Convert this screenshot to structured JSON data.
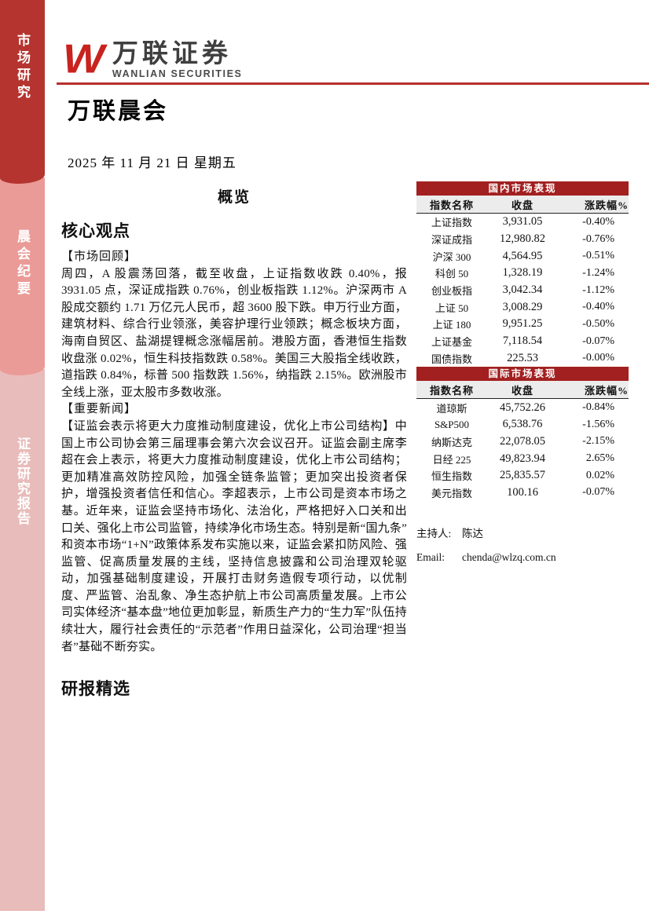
{
  "colors": {
    "accent_red": "#b5312b",
    "table_header_red": "#a32020",
    "sidebar_top_red": "#b5342f",
    "sidebar_middle_pink": "#ea9b97",
    "sidebar_bottom_pink": "#e8bcba",
    "logo_red": "#c8231f"
  },
  "sidebar": {
    "sections": [
      {
        "label": "市场研究"
      },
      {
        "label": "晨会纪要"
      },
      {
        "label": "证券研究报告"
      }
    ]
  },
  "header": {
    "logo_symbol": "W",
    "logo_cn": "万联证券",
    "logo_en": "WANLIAN SECURITIES",
    "report_title": "万联晨会",
    "date": "2025 年 11 月 21 日  星期五"
  },
  "overview": {
    "heading": "概览",
    "core_views_heading": "核心观点",
    "market_review_label": "【市场回顾】",
    "market_review_text": "周四，A 股震荡回落，截至收盘，上证指数收跌 0.40%，报 3931.05 点，深证成指跌 0.76%，创业板指跌 1.12%。沪深两市 A 股成交额约 1.71 万亿元人民币，超 3600 股下跌。申万行业方面，建筑材料、综合行业领涨，美容护理行业领跌；概念板块方面，海南自贸区、盐湖提锂概念涨幅居前。港股方面，香港恒生指数收盘涨 0.02%，恒生科技指数跌 0.58%。美国三大股指全线收跌，道指跌 0.84%，标普 500 指数跌 1.56%，纳指跌 2.15%。欧洲股市全线上涨，亚太股市多数收涨。",
    "important_news_label": "【重要新闻】",
    "important_news_text": "【证监会表示将更大力度推动制度建设，优化上市公司结构】中国上市公司协会第三届理事会第六次会议召开。证监会副主席李超在会上表示，将更大力度推动制度建设，优化上市公司结构；更加精准高效防控风险，加强全链条监管；更加突出投资者保护，增强投资者信任和信心。李超表示，上市公司是资本市场之基。近年来，证监会坚持市场化、法治化，严格把好入口关和出口关、强化上市公司监管，持续净化市场生态。特别是新“国九条”和资本市场“1+N”政策体系发布实施以来，证监会紧扣防风险、强监管、促高质量发展的主线，坚持信息披露和公司治理双轮驱动，加强基础制度建设，开展打击财务造假专项行动，以优制度、严监管、治乱象、净生态护航上市公司高质量发展。上市公司实体经济“基本盘”地位更加彰显，新质生产力的“生力军”队伍持续壮大，履行社会责任的“示范者”作用日益深化，公司治理“担当者”基础不断夯实。",
    "report_picks_heading": "研报精选"
  },
  "market_tables": [
    {
      "title": "国内市场表现",
      "columns": [
        "指数名称",
        "收盘",
        "涨跌幅%"
      ],
      "rows": [
        [
          "上证指数",
          "3,931.05",
          "-0.40%"
        ],
        [
          "深证成指",
          "12,980.82",
          "-0.76%"
        ],
        [
          "沪深 300",
          "4,564.95",
          "-0.51%"
        ],
        [
          "科创 50",
          "1,328.19",
          "-1.24%"
        ],
        [
          "创业板指",
          "3,042.34",
          "-1.12%"
        ],
        [
          "上证 50",
          "3,008.29",
          "-0.40%"
        ],
        [
          "上证 180",
          "9,951.25",
          "-0.50%"
        ],
        [
          "上证基金",
          "7,118.54",
          "-0.07%"
        ],
        [
          "国债指数",
          "225.53",
          "-0.00%"
        ]
      ]
    },
    {
      "title": "国际市场表现",
      "columns": [
        "指数名称",
        "收盘",
        "涨跌幅%"
      ],
      "rows": [
        [
          "道琼斯",
          "45,752.26",
          "-0.84%"
        ],
        [
          "S&P500",
          "6,538.76",
          "-1.56%"
        ],
        [
          "纳斯达克",
          "22,078.05",
          "-2.15%"
        ],
        [
          "日经 225",
          "49,823.94",
          "2.65%"
        ],
        [
          "恒生指数",
          "25,835.57",
          "0.02%"
        ],
        [
          "美元指数",
          "100.16",
          "-0.07%"
        ]
      ]
    }
  ],
  "contact": {
    "host_label": "主持人:",
    "host_name": "陈达",
    "email_label": "Email:",
    "email_value": "chenda@wlzq.com.cn"
  }
}
